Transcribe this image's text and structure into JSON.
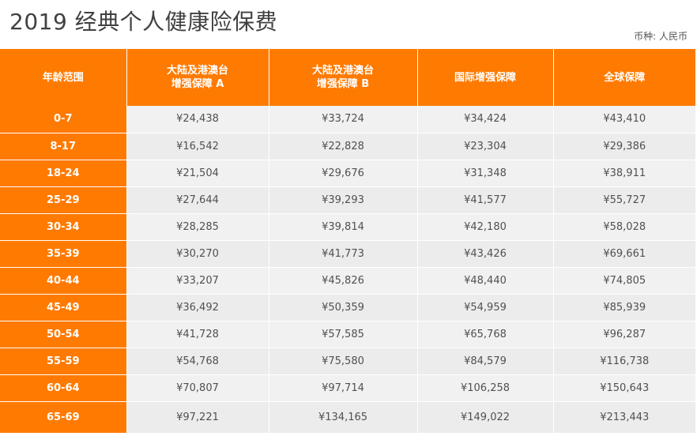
{
  "title": "2019 经典个人健康险保费",
  "currency_note": "币种: 人民币",
  "table": {
    "headers": [
      "年龄范围",
      "大陆及港澳台\n增强保障 A",
      "大陆及港澳台\n增强保障 B",
      "国际增强保障",
      "全球保障"
    ],
    "rows": [
      {
        "age": "0-7",
        "values": [
          "¥24,438",
          "¥33,724",
          "¥34,424",
          "¥43,410"
        ]
      },
      {
        "age": "8-17",
        "values": [
          "¥16,542",
          "¥22,828",
          "¥23,304",
          "¥29,386"
        ]
      },
      {
        "age": "18-24",
        "values": [
          "¥21,504",
          "¥29,676",
          "¥31,348",
          "¥38,911"
        ]
      },
      {
        "age": "25-29",
        "values": [
          "¥27,644",
          "¥39,293",
          "¥41,577",
          "¥55,727"
        ]
      },
      {
        "age": "30-34",
        "values": [
          "¥28,285",
          "¥39,814",
          "¥42,180",
          "¥58,028"
        ]
      },
      {
        "age": "35-39",
        "values": [
          "¥30,270",
          "¥41,773",
          "¥43,426",
          "¥69,661"
        ]
      },
      {
        "age": "40-44",
        "values": [
          "¥33,207",
          "¥45,826",
          "¥48,440",
          "¥74,805"
        ]
      },
      {
        "age": "45-49",
        "values": [
          "¥36,492",
          "¥50,359",
          "¥54,959",
          "¥85,939"
        ]
      },
      {
        "age": "50-54",
        "values": [
          "¥41,728",
          "¥57,585",
          "¥65,768",
          "¥96,287"
        ]
      },
      {
        "age": "55-59",
        "values": [
          "¥54,768",
          "¥75,580",
          "¥84,579",
          "¥116,738"
        ]
      },
      {
        "age": "60-64",
        "values": [
          "¥70,807",
          "¥97,714",
          "¥106,258",
          "¥150,643"
        ]
      },
      {
        "age": "65-69",
        "values": [
          "¥97,221",
          "¥134,165",
          "¥149,022",
          "¥213,443"
        ]
      }
    ]
  },
  "colors": {
    "header_orange": "#ff7a00",
    "cell_gray": "#f1f1f1",
    "text_dark": "#404040"
  }
}
